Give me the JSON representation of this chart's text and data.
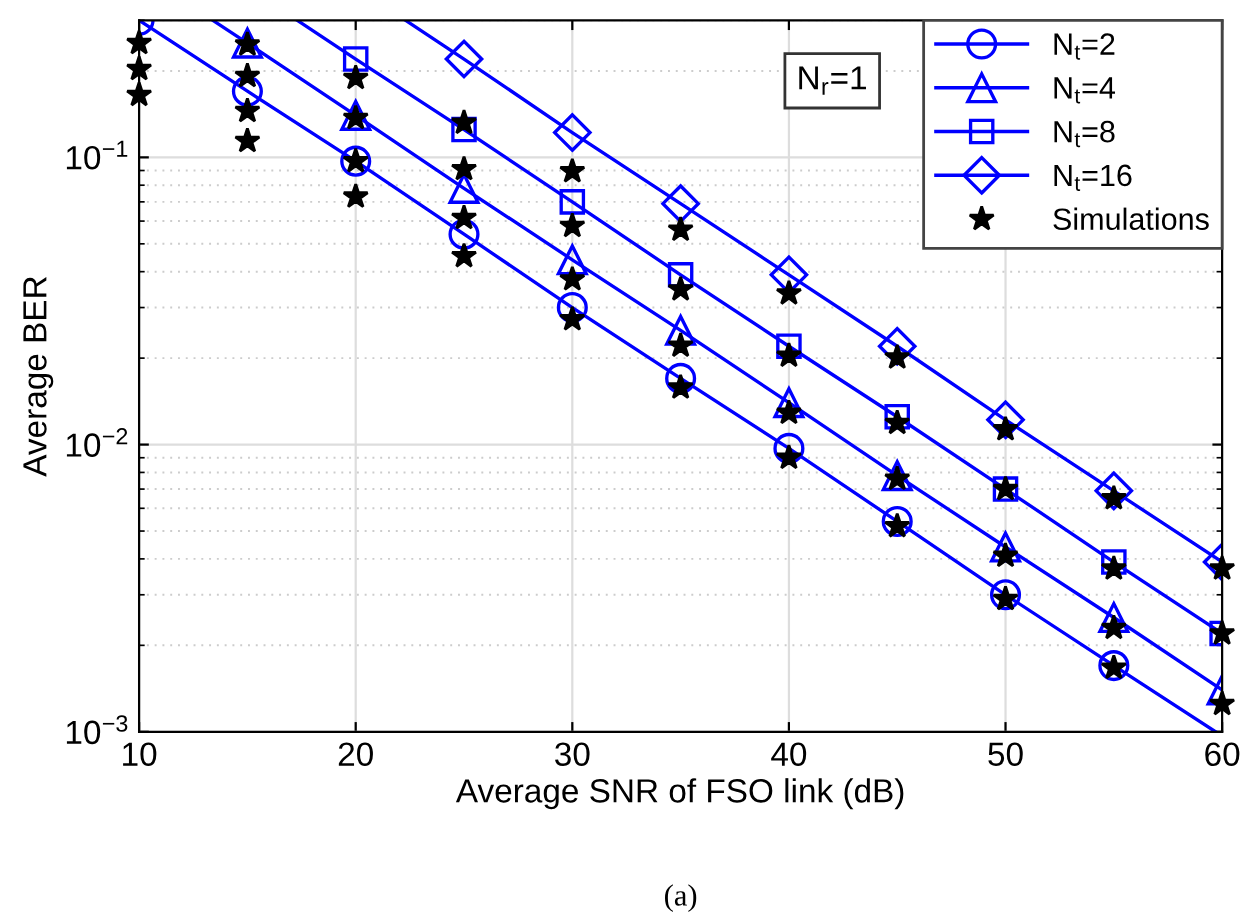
{
  "chart_data": {
    "type": "line",
    "xlabel": "Average SNR of FSO link (dB)",
    "ylabel": "Average BER",
    "log": "y",
    "xlim": [
      10,
      60
    ],
    "ylim": [
      0.001,
      0.3
    ],
    "xticks": [
      10,
      20,
      30,
      40,
      50,
      60
    ],
    "yticks": [
      {
        "value": 0.001,
        "label": "10$^{−3}$"
      },
      {
        "value": 0.01,
        "label": "10$^{−2}$"
      },
      {
        "value": 0.1,
        "label": "10$^{−1}$"
      }
    ],
    "grid": true,
    "legend": "top right",
    "annotations": [
      "N$_{r}$=1",
      "(a)"
    ],
    "series": [
      {
        "name": "N$_{t}$=2",
        "color": "#0000ff",
        "marker": "circle",
        "x": [
          10,
          15,
          20,
          25,
          30,
          35,
          40,
          45,
          50,
          55,
          59.7
        ],
        "values": [
          0.3,
          0.17,
          0.097,
          0.054,
          0.03,
          0.017,
          0.0097,
          0.0054,
          0.003,
          0.0017,
          0.001
        ]
      },
      {
        "name": "N$_{t}$=4",
        "color": "#0000ff",
        "marker": "triangle",
        "x": [
          13.4,
          15,
          20,
          25,
          30,
          35,
          40,
          45,
          50,
          55,
          60
        ],
        "values": [
          0.3,
          0.25,
          0.14,
          0.078,
          0.044,
          0.025,
          0.014,
          0.0078,
          0.0044,
          0.0025,
          0.0014
        ]
      },
      {
        "name": "N$_{t}$=8",
        "color": "#0000ff",
        "marker": "square",
        "x": [
          17.3,
          20,
          25,
          30,
          35,
          40,
          45,
          50,
          55,
          60
        ],
        "values": [
          0.3,
          0.22,
          0.125,
          0.07,
          0.039,
          0.022,
          0.0125,
          0.007,
          0.0039,
          0.0022
        ]
      },
      {
        "name": "N$_{t}$=16",
        "color": "#0000ff",
        "marker": "diamond",
        "x": [
          22.3,
          25,
          30,
          35,
          40,
          45,
          50,
          55,
          60
        ],
        "values": [
          0.3,
          0.22,
          0.122,
          0.069,
          0.039,
          0.022,
          0.0122,
          0.0069,
          0.0039
        ]
      },
      {
        "name": "Simulations",
        "type": "scatter",
        "color": "#000000",
        "marker": "star",
        "x": [
          10,
          10,
          10,
          15,
          15,
          15,
          15,
          20,
          20,
          20,
          20,
          25,
          25,
          25,
          25,
          30,
          30,
          30,
          30,
          35,
          35,
          35,
          35,
          40,
          40,
          40,
          40,
          45,
          45,
          45,
          45,
          50,
          50,
          50,
          50,
          55,
          55,
          55,
          55,
          60,
          60,
          60
        ],
        "values": [
          0.25,
          0.203,
          0.165,
          0.247,
          0.192,
          0.145,
          0.114,
          0.189,
          0.137,
          0.097,
          0.073,
          0.132,
          0.091,
          0.0615,
          0.0453,
          0.0894,
          0.0577,
          0.0376,
          0.0273,
          0.056,
          0.0347,
          0.0221,
          0.0158,
          0.0336,
          0.0204,
          0.0129,
          0.009,
          0.0201,
          0.0119,
          0.0076,
          0.0052,
          0.0113,
          0.007,
          0.0041,
          0.0029,
          0.0065,
          0.0037,
          0.0023,
          0.00167,
          0.0037,
          0.0022,
          0.00125
        ]
      }
    ]
  }
}
